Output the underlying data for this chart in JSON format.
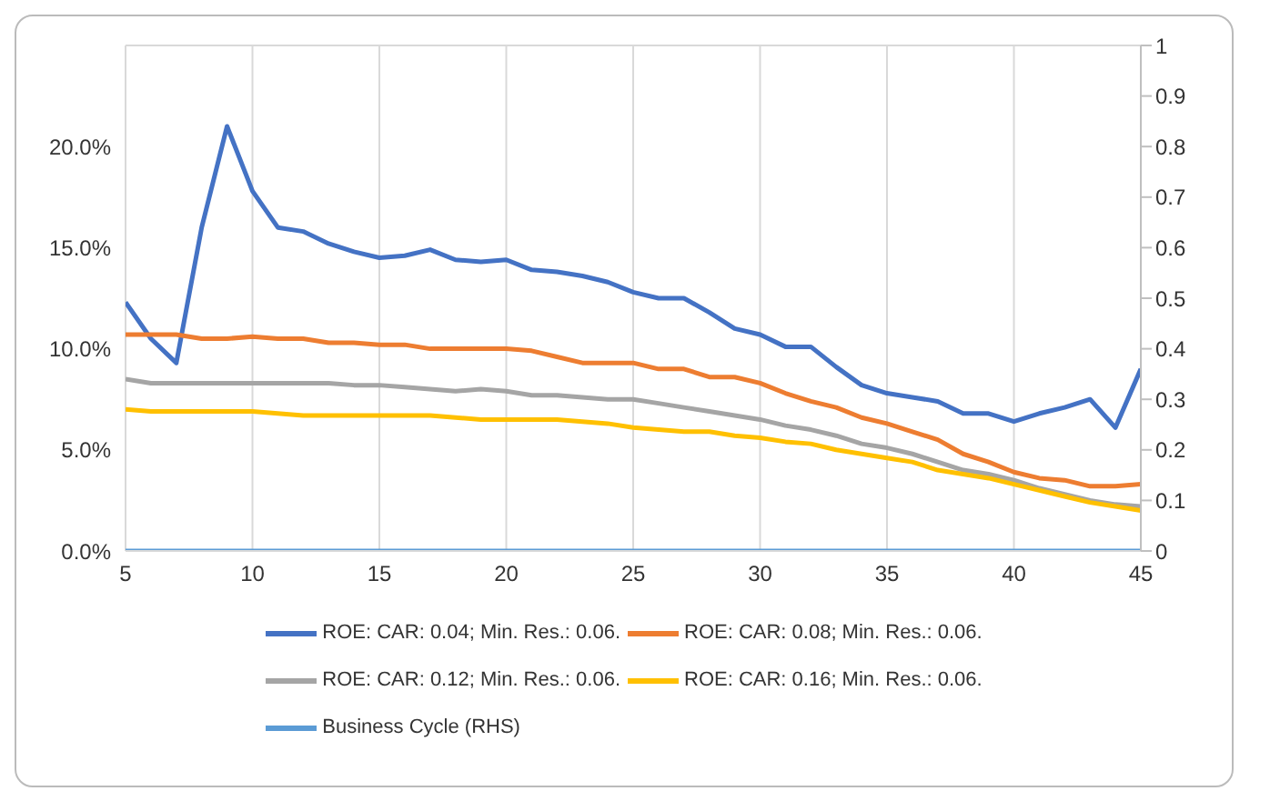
{
  "chart_data": {
    "type": "line",
    "x": [
      5,
      6,
      7,
      8,
      9,
      10,
      11,
      12,
      13,
      14,
      15,
      16,
      17,
      18,
      19,
      20,
      21,
      22,
      23,
      24,
      25,
      26,
      27,
      28,
      29,
      30,
      31,
      32,
      33,
      34,
      35,
      36,
      37,
      38,
      39,
      40,
      41,
      42,
      43,
      44,
      45
    ],
    "series": [
      {
        "name": "ROE: CAR: 0.04; Min. Res.: 0.06.",
        "color": "#4472c4",
        "values": [
          12.3,
          10.5,
          9.3,
          16,
          21,
          17.8,
          16,
          15.8,
          15.2,
          14.8,
          14.5,
          14.6,
          14.9,
          14.4,
          14.3,
          14.4,
          13.9,
          13.8,
          13.6,
          13.3,
          12.8,
          12.5,
          12.5,
          11.8,
          11,
          10.7,
          10.1,
          10.1,
          9.1,
          8.2,
          7.8,
          7.6,
          7.4,
          6.8,
          6.8,
          6.4,
          6.8,
          7.1,
          7.5,
          6.1,
          9.0
        ]
      },
      {
        "name": "ROE: CAR: 0.08; Min. Res.: 0.06.",
        "color": "#ed7d31",
        "values": [
          10.7,
          10.7,
          10.7,
          10.5,
          10.5,
          10.6,
          10.5,
          10.5,
          10.3,
          10.3,
          10.2,
          10.2,
          10.0,
          10.0,
          10.0,
          10.0,
          9.9,
          9.6,
          9.3,
          9.3,
          9.3,
          9.0,
          9.0,
          8.6,
          8.6,
          8.3,
          7.8,
          7.4,
          7.1,
          6.6,
          6.3,
          5.9,
          5.5,
          4.8,
          4.4,
          3.9,
          3.6,
          3.5,
          3.2,
          3.2,
          3.3
        ]
      },
      {
        "name": "ROE: CAR: 0.12; Min. Res.: 0.06.",
        "color": "#a5a5a5",
        "values": [
          8.5,
          8.3,
          8.3,
          8.3,
          8.3,
          8.3,
          8.3,
          8.3,
          8.3,
          8.2,
          8.2,
          8.1,
          8.0,
          7.9,
          8.0,
          7.9,
          7.7,
          7.7,
          7.6,
          7.5,
          7.5,
          7.3,
          7.1,
          6.9,
          6.7,
          6.5,
          6.2,
          6.0,
          5.7,
          5.3,
          5.1,
          4.8,
          4.4,
          4.0,
          3.8,
          3.5,
          3.1,
          2.8,
          2.5,
          2.3,
          2.2
        ]
      },
      {
        "name": "ROE: CAR: 0.16; Min. Res.: 0.06.",
        "color": "#ffc000",
        "values": [
          7.0,
          6.9,
          6.9,
          6.9,
          6.9,
          6.9,
          6.8,
          6.7,
          6.7,
          6.7,
          6.7,
          6.7,
          6.7,
          6.6,
          6.5,
          6.5,
          6.5,
          6.5,
          6.4,
          6.3,
          6.1,
          6.0,
          5.9,
          5.9,
          5.7,
          5.6,
          5.4,
          5.3,
          5.0,
          4.8,
          4.6,
          4.4,
          4.0,
          3.8,
          3.6,
          3.3,
          3.0,
          2.7,
          2.4,
          2.2,
          2.0
        ]
      },
      {
        "name": "Business Cycle (RHS)",
        "color": "#5b9bd5",
        "axis": "y2",
        "values": [
          0,
          0,
          0,
          0,
          0,
          0,
          0,
          0,
          0,
          0,
          0,
          0,
          0,
          0,
          0,
          0,
          0,
          0,
          0,
          0,
          0,
          0,
          0,
          0,
          0,
          0,
          0,
          0,
          0,
          0,
          0,
          0,
          0,
          0,
          0,
          0,
          0,
          0,
          0,
          0,
          0
        ]
      }
    ],
    "xlim": [
      5,
      45
    ],
    "xticks": [
      5,
      10,
      15,
      20,
      25,
      30,
      35,
      40,
      45
    ],
    "ylim": [
      0,
      25
    ],
    "yticks": [
      {
        "value": 0,
        "label": "0.0%"
      },
      {
        "value": 5,
        "label": "5.0%"
      },
      {
        "value": 10,
        "label": "10.0%"
      },
      {
        "value": 15,
        "label": "15.0%"
      },
      {
        "value": 20,
        "label": "20.0%"
      },
      {
        "value": 25,
        "label": null
      }
    ],
    "y2lim": [
      0,
      1
    ],
    "y2ticks": [
      0,
      0.1,
      0.2,
      0.3,
      0.4,
      0.5,
      0.6,
      0.7,
      0.8,
      0.9,
      1
    ],
    "grid": true,
    "legend": "bottom",
    "marker": "none",
    "line_style": "solid"
  }
}
